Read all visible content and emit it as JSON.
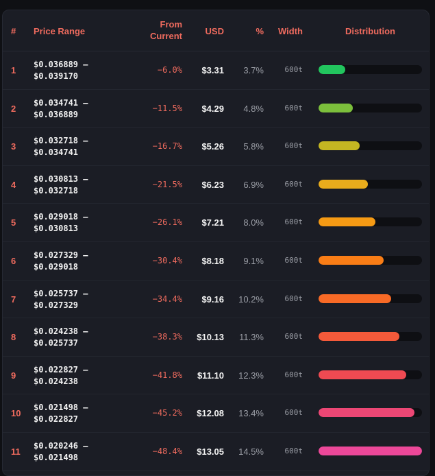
{
  "header": {
    "num": "#",
    "price_range": "Price Range",
    "from_current_1": "From",
    "from_current_2": "Current",
    "usd": "USD",
    "pct": "%",
    "width": "Width",
    "distribution": "Distribution"
  },
  "rows": [
    {
      "num": "1",
      "range_low": "$0.036889 –",
      "range_high": "$0.039170",
      "from": "−6.0%",
      "usd": "$3.31",
      "pct": "3.7%",
      "width": "600t",
      "fill_fraction": 0.255,
      "color": "#22c55e"
    },
    {
      "num": "2",
      "range_low": "$0.034741 –",
      "range_high": "$0.036889",
      "from": "−11.5%",
      "usd": "$4.29",
      "pct": "4.8%",
      "width": "600t",
      "fill_fraction": 0.331,
      "color": "#7cbf3c"
    },
    {
      "num": "3",
      "range_low": "$0.032718 –",
      "range_high": "$0.034741",
      "from": "−16.7%",
      "usd": "$5.26",
      "pct": "5.8%",
      "width": "600t",
      "fill_fraction": 0.4,
      "color": "#c4b622"
    },
    {
      "num": "4",
      "range_low": "$0.030813 –",
      "range_high": "$0.032718",
      "from": "−21.5%",
      "usd": "$6.23",
      "pct": "6.9%",
      "width": "600t",
      "fill_fraction": 0.476,
      "color": "#e9ac1c"
    },
    {
      "num": "5",
      "range_low": "$0.029018 –",
      "range_high": "$0.030813",
      "from": "−26.1%",
      "usd": "$7.21",
      "pct": "8.0%",
      "width": "600t",
      "fill_fraction": 0.552,
      "color": "#f59a14"
    },
    {
      "num": "6",
      "range_low": "$0.027329 –",
      "range_high": "$0.029018",
      "from": "−30.4%",
      "usd": "$8.18",
      "pct": "9.1%",
      "width": "600t",
      "fill_fraction": 0.628,
      "color": "#f97d16"
    },
    {
      "num": "7",
      "range_low": "$0.025737 –",
      "range_high": "$0.027329",
      "from": "−34.4%",
      "usd": "$9.16",
      "pct": "10.2%",
      "width": "600t",
      "fill_fraction": 0.703,
      "color": "#f86a26"
    },
    {
      "num": "8",
      "range_low": "$0.024238 –",
      "range_high": "$0.025737",
      "from": "−38.3%",
      "usd": "$10.13",
      "pct": "11.3%",
      "width": "600t",
      "fill_fraction": 0.779,
      "color": "#f55a3a"
    },
    {
      "num": "9",
      "range_low": "$0.022827 –",
      "range_high": "$0.024238",
      "from": "−41.8%",
      "usd": "$11.10",
      "pct": "12.3%",
      "width": "600t",
      "fill_fraction": 0.848,
      "color": "#ef4a52"
    },
    {
      "num": "10",
      "range_low": "$0.021498 –",
      "range_high": "$0.022827",
      "from": "−45.2%",
      "usd": "$12.08",
      "pct": "13.4%",
      "width": "600t",
      "fill_fraction": 0.924,
      "color": "#ec4775"
    },
    {
      "num": "11",
      "range_low": "$0.020246 –",
      "range_high": "$0.021498",
      "from": "−48.4%",
      "usd": "$13.05",
      "pct": "14.5%",
      "width": "600t",
      "fill_fraction": 1.0,
      "color": "#ec4899"
    }
  ]
}
